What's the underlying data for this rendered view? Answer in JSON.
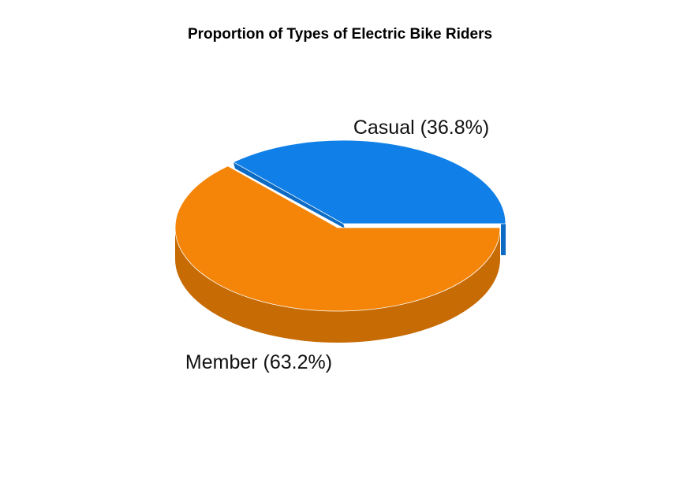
{
  "chart_data": {
    "type": "pie",
    "title": "Proportion of Types of Electric Bike Riders",
    "style": "3d-exploded",
    "slices": [
      {
        "name": "Casual",
        "value": 36.8,
        "label": "Casual (36.8%)",
        "color": "#1080E8",
        "side_color": "#0D6BC4"
      },
      {
        "name": "Member",
        "value": 63.2,
        "label": "Member (63.2%)",
        "color": "#F48508",
        "side_color": "#C76B05"
      }
    ]
  }
}
